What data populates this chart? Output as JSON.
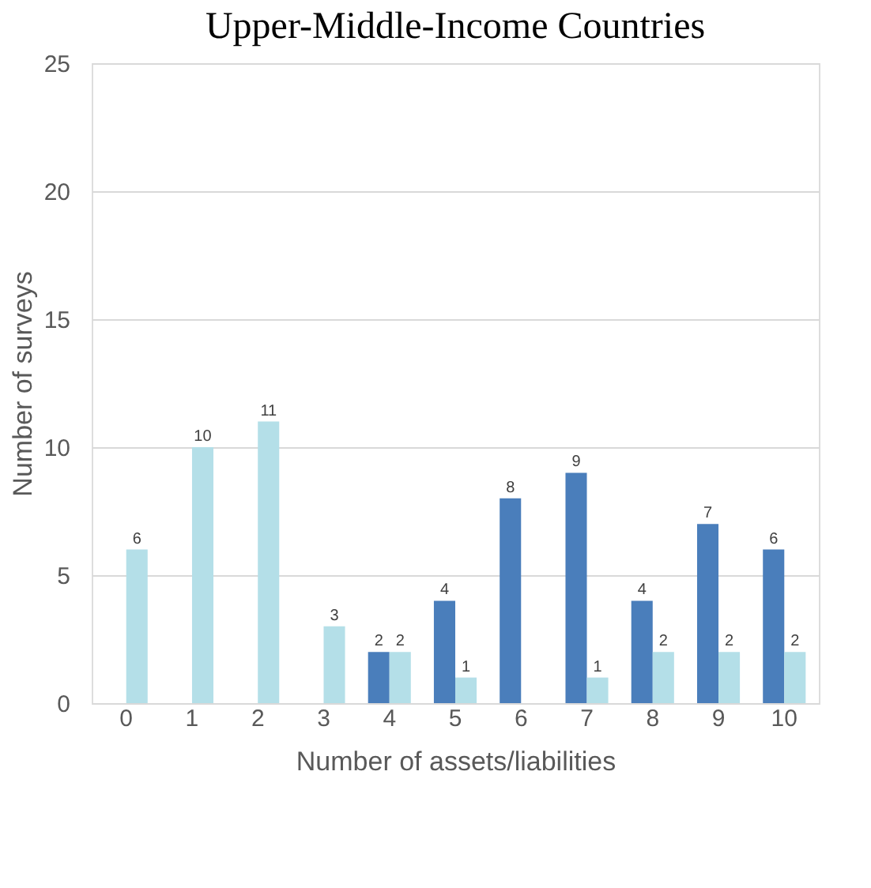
{
  "chart_data": {
    "type": "bar",
    "title": "Upper-Middle-Income Countries",
    "xlabel": "Number of assets/liabilities",
    "ylabel": "Number of surveys",
    "categories": [
      "0",
      "1",
      "2",
      "3",
      "4",
      "5",
      "6",
      "7",
      "8",
      "9",
      "10"
    ],
    "series": [
      {
        "color": "#4a7ebb",
        "values": [
          0,
          0,
          0,
          0,
          2,
          4,
          8,
          9,
          4,
          7,
          6
        ],
        "value_labels": [
          null,
          null,
          null,
          null,
          "2",
          "4",
          "8",
          "9",
          "4",
          "7",
          "6"
        ]
      },
      {
        "color": "#b4dfe8",
        "values": [
          6,
          10,
          11,
          3,
          2,
          1,
          0,
          1,
          2,
          2,
          2
        ],
        "value_labels": [
          "6",
          "10",
          "11",
          "3",
          "2",
          "1",
          null,
          "1",
          "2",
          "2",
          "2"
        ]
      }
    ],
    "ylim": [
      0,
      25
    ],
    "yticks": [
      0,
      5,
      10,
      15,
      20,
      25
    ],
    "grid": "y",
    "legend": false
  }
}
